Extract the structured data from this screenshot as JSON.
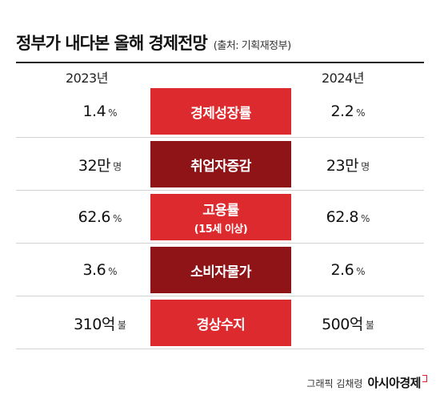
{
  "title": "정부가 내다본 올해 경제전망",
  "source": "(출처: 기획재정부)",
  "years": {
    "left": "2023년",
    "right": "2024년"
  },
  "rows": [
    {
      "label": "경제성장률",
      "sublabel": "",
      "color": "#dd2a2f",
      "left": {
        "value": "1.4",
        "unit": "%"
      },
      "right": {
        "value": "2.2",
        "unit": "%"
      }
    },
    {
      "label": "취업자증감",
      "sublabel": "",
      "color": "#8e1418",
      "left": {
        "value": "32만",
        "unit": "명"
      },
      "right": {
        "value": "23만",
        "unit": "명"
      }
    },
    {
      "label": "고용률",
      "sublabel": "(15세 이상)",
      "color": "#dd2a2f",
      "left": {
        "value": "62.6",
        "unit": "%"
      },
      "right": {
        "value": "62.8",
        "unit": "%"
      }
    },
    {
      "label": "소비자물가",
      "sublabel": "",
      "color": "#8e1418",
      "left": {
        "value": "3.6",
        "unit": "%"
      },
      "right": {
        "value": "2.6",
        "unit": "%"
      }
    },
    {
      "label": "경상수지",
      "sublabel": "",
      "color": "#dd2a2f",
      "left": {
        "value": "310억",
        "unit": "불"
      },
      "right": {
        "value": "500억",
        "unit": "불"
      }
    }
  ],
  "credit": {
    "text": "그래픽 김채령",
    "brand": "아시아경제"
  }
}
